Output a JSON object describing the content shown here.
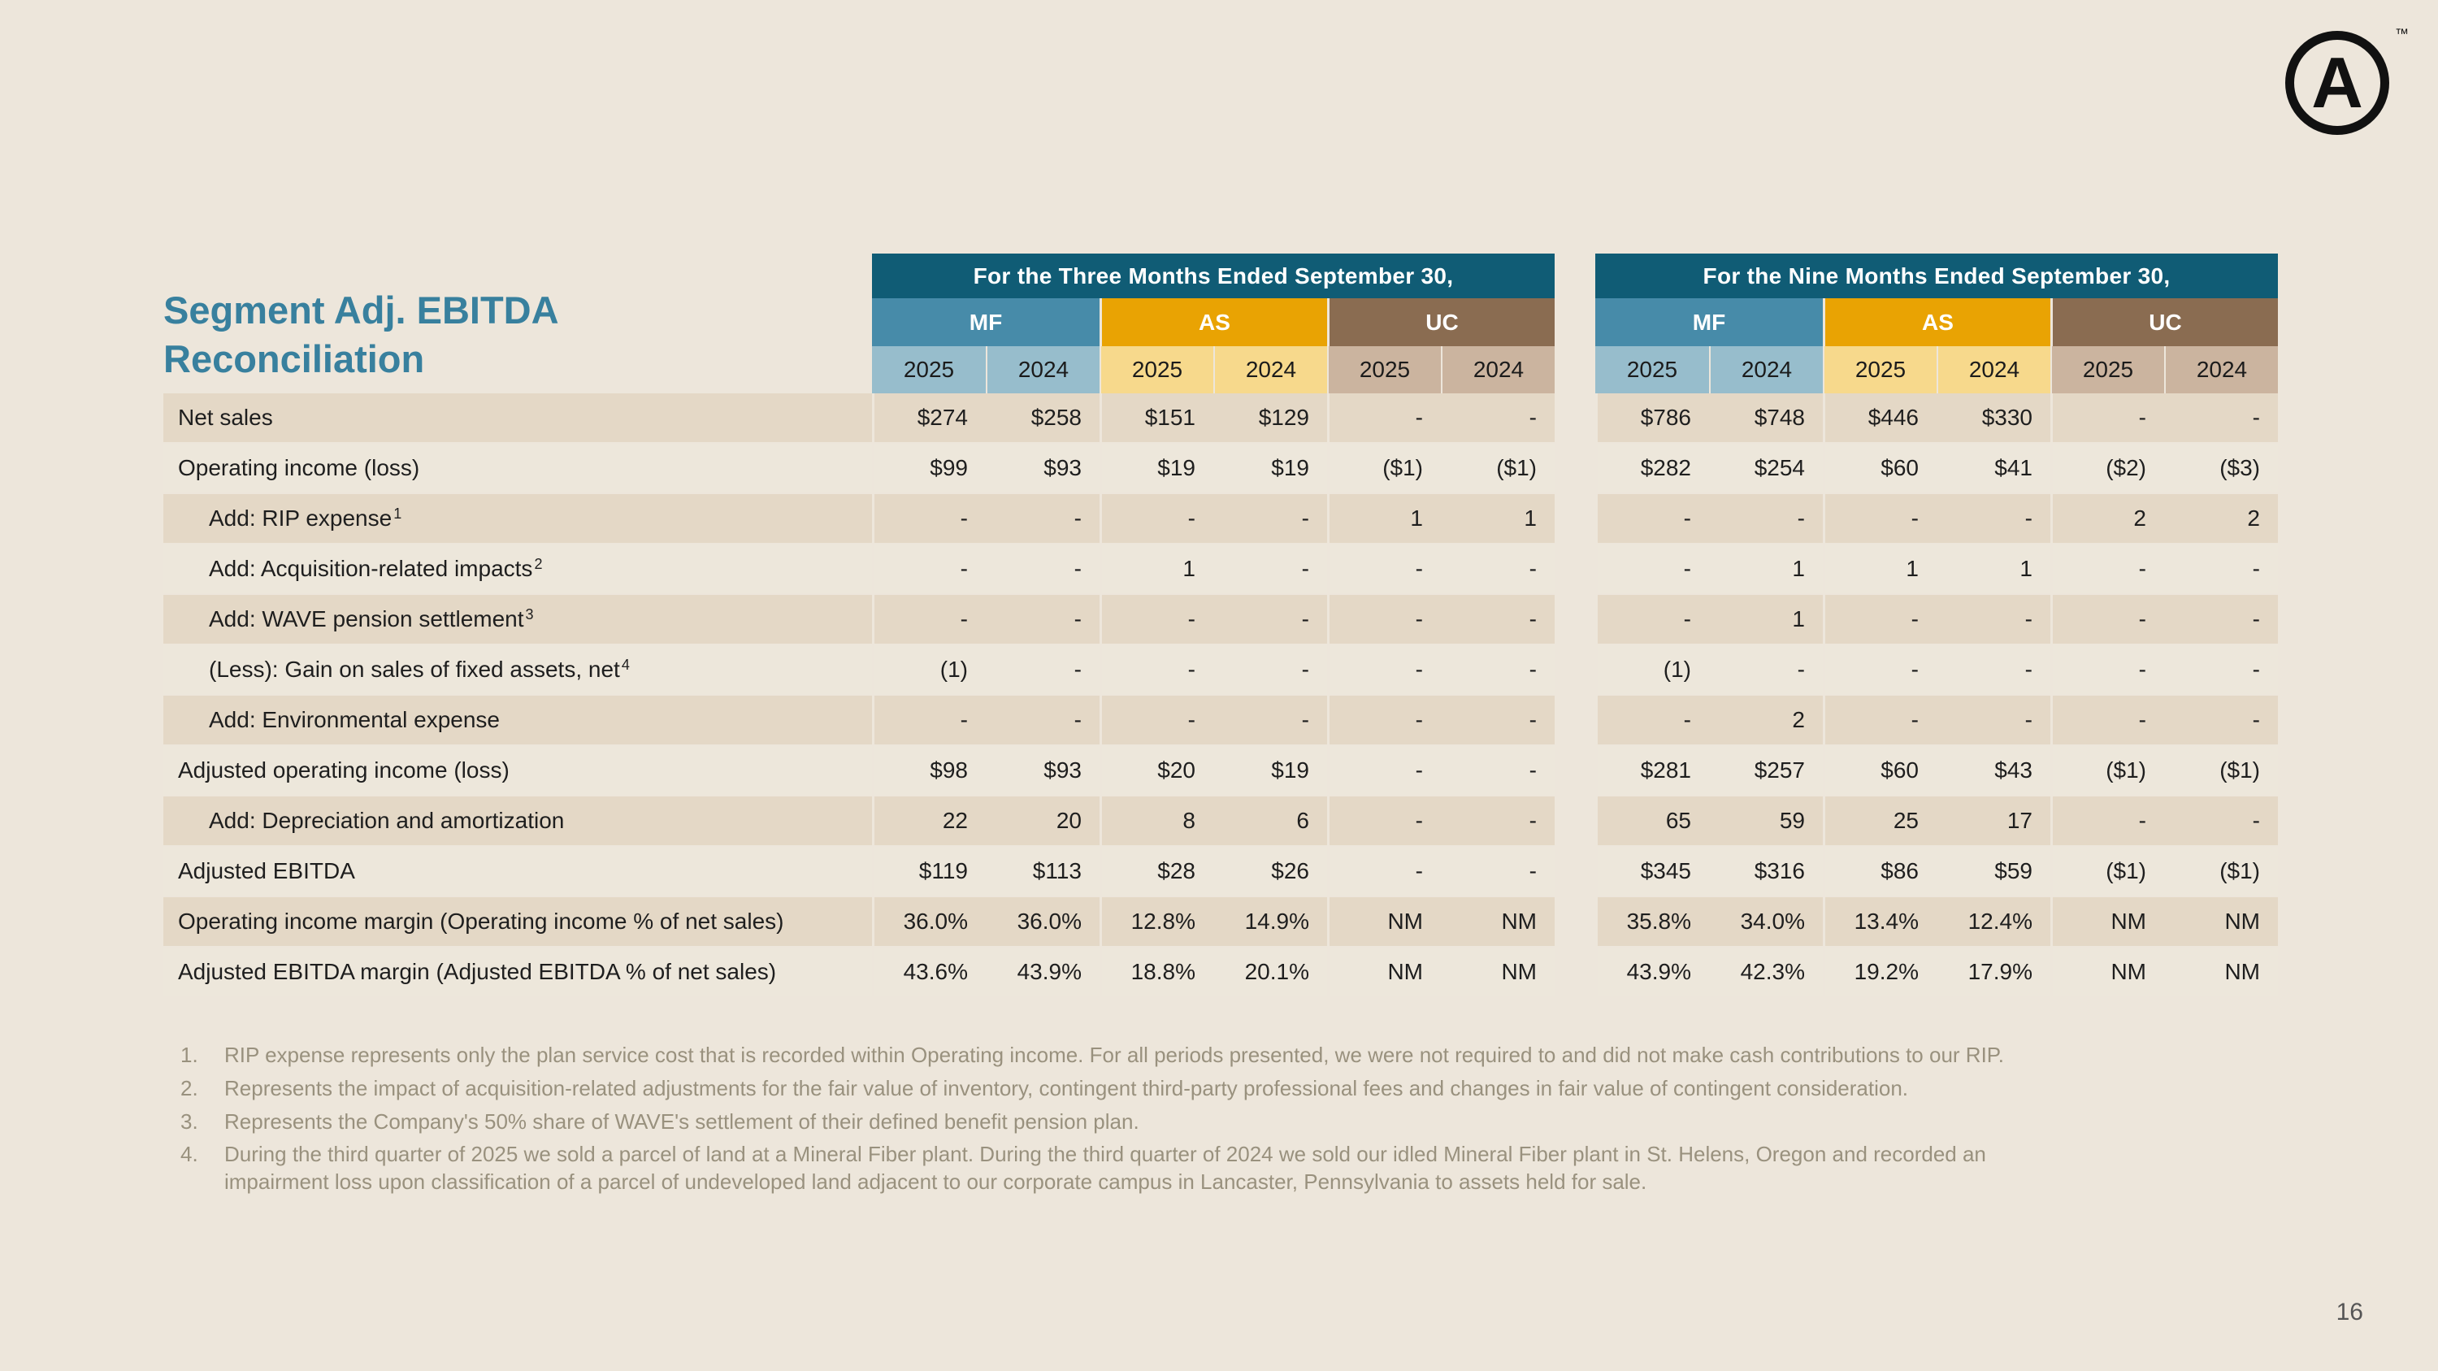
{
  "slide": {
    "title_line1": "Segment Adj. EBITDA",
    "title_line2": "Reconciliation",
    "page_number": "16",
    "logo_letter": "A",
    "logo_tm": "™"
  },
  "colors": {
    "background": "#EDE6DB",
    "title_text": "#38809E",
    "period_bg": "#105C75",
    "mf": "#478BA9",
    "mf_light": "#97BDCC",
    "as": "#E9A303",
    "as_light": "#F7D98C",
    "uc": "#8A6C51",
    "uc_light": "#CBB49F",
    "row_a": "#E4D8C6",
    "row_b": "#EDE7DB",
    "ink": "#1E1E1E",
    "footnote_text": "#99917E",
    "page_number": "#555555"
  },
  "table": {
    "groups": [
      {
        "label": "For the Three Months Ended September 30,",
        "segments": [
          {
            "name": "MF",
            "key": "mf"
          },
          {
            "name": "AS",
            "key": "as"
          },
          {
            "name": "UC",
            "key": "uc"
          }
        ]
      },
      {
        "label": "For the Nine Months Ended September 30,",
        "segments": [
          {
            "name": "MF",
            "key": "mf"
          },
          {
            "name": "AS",
            "key": "as"
          },
          {
            "name": "UC",
            "key": "uc"
          }
        ]
      }
    ],
    "years": [
      "2025",
      "2024"
    ],
    "rows": [
      {
        "label": "Net sales",
        "indent": false,
        "footnote_ref": "",
        "values": [
          "$274",
          "$258",
          "$151",
          "$129",
          "-",
          "-",
          "$786",
          "$748",
          "$446",
          "$330",
          "-",
          "-"
        ]
      },
      {
        "label": "Operating income (loss)",
        "indent": false,
        "footnote_ref": "",
        "values": [
          "$99",
          "$93",
          "$19",
          "$19",
          "($1)",
          "($1)",
          "$282",
          "$254",
          "$60",
          "$41",
          "($2)",
          "($3)"
        ]
      },
      {
        "label": "Add: RIP expense",
        "indent": true,
        "footnote_ref": "1",
        "values": [
          "-",
          "-",
          "-",
          "-",
          "1",
          "1",
          "-",
          "-",
          "-",
          "-",
          "2",
          "2"
        ]
      },
      {
        "label": "Add: Acquisition-related impacts",
        "indent": true,
        "footnote_ref": "2",
        "values": [
          "-",
          "-",
          "1",
          "-",
          "-",
          "-",
          "-",
          "1",
          "1",
          "1",
          "-",
          "-"
        ]
      },
      {
        "label": "Add: WAVE pension settlement",
        "indent": true,
        "footnote_ref": "3",
        "values": [
          "-",
          "-",
          "-",
          "-",
          "-",
          "-",
          "-",
          "1",
          "-",
          "-",
          "-",
          "-"
        ]
      },
      {
        "label": "(Less): Gain on sales of fixed assets, net",
        "indent": true,
        "footnote_ref": "4",
        "values": [
          "(1)",
          "-",
          "-",
          "-",
          "-",
          "-",
          "(1)",
          "-",
          "-",
          "-",
          "-",
          "-"
        ]
      },
      {
        "label": "Add: Environmental expense",
        "indent": true,
        "footnote_ref": "",
        "values": [
          "-",
          "-",
          "-",
          "-",
          "-",
          "-",
          "-",
          "2",
          "-",
          "-",
          "-",
          "-"
        ]
      },
      {
        "label": "Adjusted operating income (loss)",
        "indent": false,
        "footnote_ref": "",
        "values": [
          "$98",
          "$93",
          "$20",
          "$19",
          "-",
          "-",
          "$281",
          "$257",
          "$60",
          "$43",
          "($1)",
          "($1)"
        ]
      },
      {
        "label": "Add: Depreciation and amortization",
        "indent": true,
        "footnote_ref": "",
        "values": [
          "22",
          "20",
          "8",
          "6",
          "-",
          "-",
          "65",
          "59",
          "25",
          "17",
          "-",
          "-"
        ]
      },
      {
        "label": "Adjusted EBITDA",
        "indent": false,
        "footnote_ref": "",
        "values": [
          "$119",
          "$113",
          "$28",
          "$26",
          "-",
          "-",
          "$345",
          "$316",
          "$86",
          "$59",
          "($1)",
          "($1)"
        ]
      },
      {
        "label": "Operating income margin (Operating income % of net sales)",
        "indent": false,
        "footnote_ref": "",
        "values": [
          "36.0%",
          "36.0%",
          "12.8%",
          "14.9%",
          "NM",
          "NM",
          "35.8%",
          "34.0%",
          "13.4%",
          "12.4%",
          "NM",
          "NM"
        ]
      },
      {
        "label": "Adjusted EBITDA margin (Adjusted EBITDA % of net sales)",
        "indent": false,
        "footnote_ref": "",
        "values": [
          "43.6%",
          "43.9%",
          "18.8%",
          "20.1%",
          "NM",
          "NM",
          "43.9%",
          "42.3%",
          "19.2%",
          "17.9%",
          "NM",
          "NM"
        ]
      }
    ]
  },
  "footnotes": [
    {
      "num": "1.",
      "text": "RIP expense represents only the plan service cost that is recorded within Operating income. For all periods presented, we were not required to and did not make cash contributions to our RIP."
    },
    {
      "num": "2.",
      "text": "Represents the impact of acquisition-related adjustments for the fair value of inventory, contingent third-party professional fees and changes in fair value of contingent consideration."
    },
    {
      "num": "3.",
      "text": "Represents the Company's 50% share of WAVE's settlement of their defined benefit pension plan."
    },
    {
      "num": "4.",
      "text": "During the third quarter of 2025 we sold a parcel of land at a Mineral Fiber plant. During the third quarter of 2024 we sold our idled Mineral Fiber plant in St. Helens, Oregon and recorded an impairment loss upon classification of a parcel of undeveloped land adjacent to our corporate campus in Lancaster, Pennsylvania to assets held for sale."
    }
  ]
}
